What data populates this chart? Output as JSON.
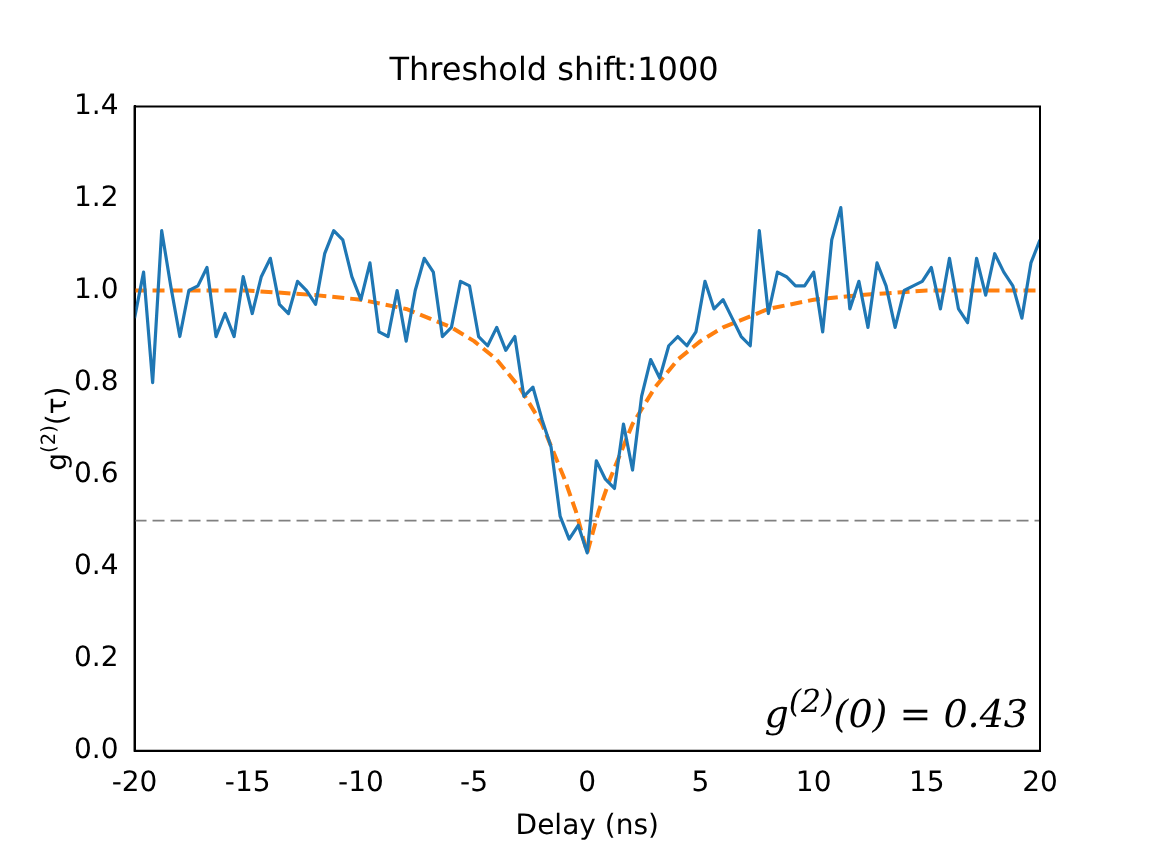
{
  "chart_data": {
    "type": "line",
    "title": "Threshold shift:1000",
    "xlabel": "Delay (ns)",
    "ylabel": "g$^{(2)}$(τ)",
    "xlim": [
      -20,
      20
    ],
    "xticks": [
      -20,
      -15,
      -10,
      -5,
      0,
      5,
      10,
      15,
      20
    ],
    "ylim": [
      0,
      1.4
    ],
    "yticks": [
      {
        "value": 0,
        "label": "0.0"
      },
      {
        "value": 0.2,
        "label": "0.2"
      },
      {
        "value": 0.4,
        "label": "0.4"
      },
      {
        "value": 0.6,
        "label": "0.6"
      },
      {
        "value": 0.8,
        "label": "0.8"
      },
      {
        "value": 1,
        "label": "1.0"
      },
      {
        "value": 1.2,
        "label": "1.2"
      },
      {
        "value": 1.4,
        "label": "1.4"
      }
    ],
    "grid": false,
    "legend": false,
    "marker": "none",
    "series": [
      {
        "color": "#1f77b4",
        "line_style": "solid",
        "x": [
          -20,
          -19.6,
          -19.2,
          -18.8,
          -18.4,
          -18,
          -17.6,
          -17.2,
          -16.8,
          -16.4,
          -16,
          -15.6,
          -15.2,
          -14.8,
          -14.4,
          -14,
          -13.6,
          -13.2,
          -12.8,
          -12.4,
          -12,
          -11.6,
          -11.2,
          -10.8,
          -10.4,
          -10,
          -9.6,
          -9.2,
          -8.8,
          -8.4,
          -8,
          -7.6,
          -7.2,
          -6.8,
          -6.4,
          -6,
          -5.6,
          -5.2,
          -4.8,
          -4.4,
          -4,
          -3.6,
          -3.2,
          -2.8,
          -2.4,
          -2,
          -1.6,
          -1.2,
          -0.8,
          -0.4,
          0,
          0.4,
          0.8,
          1.2,
          1.6,
          2,
          2.4,
          2.8,
          3.2,
          3.6,
          4,
          4.4,
          4.8,
          5.2,
          5.6,
          6,
          6.4,
          6.8,
          7.2,
          7.6,
          8,
          8.4,
          8.8,
          9.2,
          9.6,
          10,
          10.4,
          10.8,
          11.2,
          11.6,
          12,
          12.4,
          12.8,
          13.2,
          13.6,
          14,
          14.4,
          14.8,
          15.2,
          15.6,
          16,
          16.4,
          16.8,
          17.2,
          17.6,
          18,
          18.4,
          18.8,
          19.2,
          19.6,
          20
        ],
        "values": [
          0.94,
          1.04,
          0.8,
          1.13,
          1.01,
          0.9,
          1.0,
          1.01,
          1.05,
          0.9,
          0.95,
          0.9,
          1.03,
          0.95,
          1.03,
          1.07,
          0.97,
          0.95,
          1.02,
          1.0,
          0.97,
          1.08,
          1.13,
          1.11,
          1.03,
          0.98,
          1.06,
          0.91,
          0.9,
          1.0,
          0.89,
          1.0,
          1.07,
          1.04,
          0.9,
          0.92,
          1.02,
          1.01,
          0.9,
          0.88,
          0.92,
          0.87,
          0.9,
          0.77,
          0.79,
          0.72,
          0.66,
          0.51,
          0.46,
          0.49,
          0.43,
          0.63,
          0.59,
          0.57,
          0.71,
          0.61,
          0.77,
          0.85,
          0.81,
          0.88,
          0.9,
          0.88,
          0.91,
          1.02,
          0.96,
          0.98,
          0.94,
          0.9,
          0.88,
          1.13,
          0.95,
          1.04,
          1.03,
          1.01,
          1.01,
          1.04,
          0.91,
          1.11,
          1.18,
          0.96,
          1.02,
          0.92,
          1.06,
          1.01,
          0.92,
          1.0,
          1.01,
          1.02,
          1.05,
          0.96,
          1.07,
          0.96,
          0.93,
          1.07,
          0.99,
          1.08,
          1.04,
          1.01,
          0.94,
          1.06,
          1.11
        ]
      },
      {
        "color": "#ff7f0e",
        "line_style": "dashed",
        "x": [
          -20,
          -15,
          -12,
          -10,
          -8,
          -6,
          -5,
          -4,
          -3,
          -2,
          -1.5,
          -1,
          -0.5,
          0,
          0.5,
          1,
          1.5,
          2,
          3,
          4,
          5,
          6,
          8,
          10,
          12,
          15,
          20
        ],
        "values": [
          1.0,
          1.0,
          0.99,
          0.98,
          0.96,
          0.92,
          0.89,
          0.85,
          0.79,
          0.71,
          0.65,
          0.59,
          0.52,
          0.43,
          0.52,
          0.59,
          0.65,
          0.71,
          0.79,
          0.85,
          0.89,
          0.92,
          0.96,
          0.98,
          0.99,
          1.0,
          1.0
        ]
      }
    ],
    "ref_lines": [
      {
        "axis": "y",
        "value": 0.5,
        "color": "#808080",
        "line_style": "dashed"
      }
    ],
    "annotations": [
      "g$^{(2)}$(0) = 0.43"
    ]
  }
}
